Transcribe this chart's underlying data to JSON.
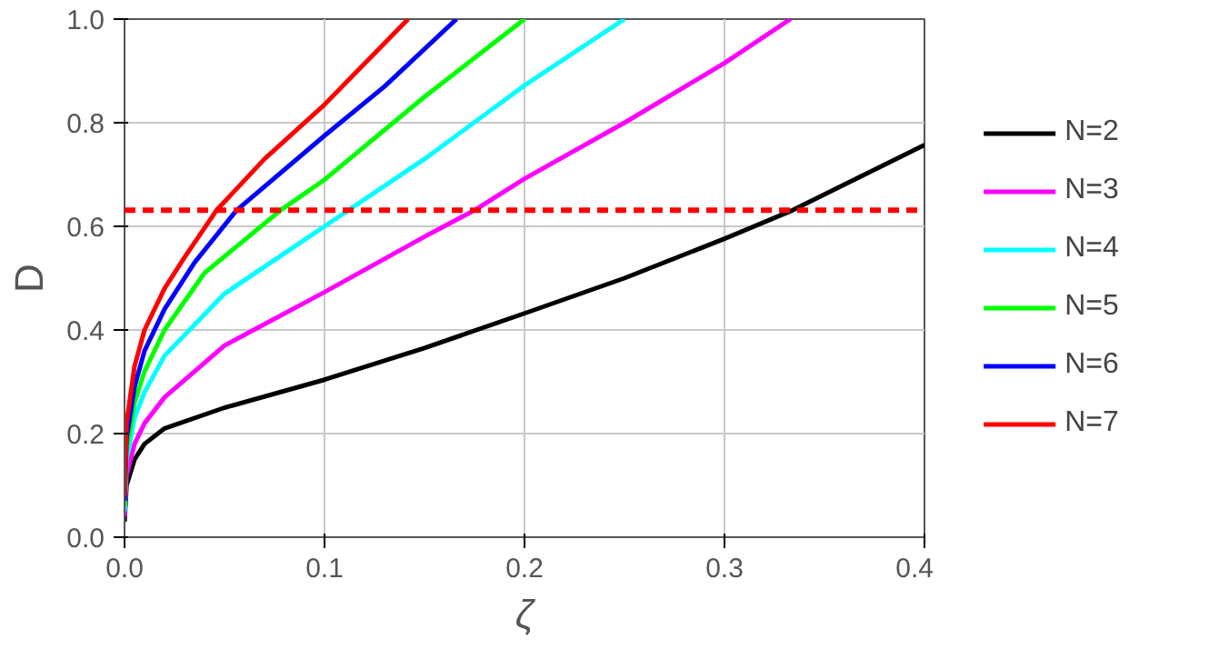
{
  "chart_data": {
    "type": "line",
    "xlabel": "ζ",
    "ylabel": "D",
    "xlim": [
      0,
      0.4
    ],
    "ylim": [
      0,
      1
    ],
    "xticks": [
      {
        "value": 0,
        "label": "0.0"
      },
      0.1,
      0.2,
      0.3,
      0.4
    ],
    "yticks": [
      {
        "value": 0,
        "label": "0.0"
      },
      0.2,
      0.4,
      0.6,
      0.8,
      {
        "value": 1,
        "label": "1.0"
      }
    ],
    "grid": true,
    "legend": "right",
    "line_style": "solid",
    "marker": "none",
    "ref_lines": [
      {
        "axis": "y",
        "value": 0.631,
        "label": null,
        "color": "#ff0000",
        "line_style": "dashed"
      }
    ],
    "series": [
      {
        "name": "N=2",
        "color": "#000000",
        "x": [
          0,
          0.001,
          0.005,
          0.01,
          0.02,
          0.05,
          0.1,
          0.15,
          0.2,
          0.25,
          0.3,
          0.334,
          0.4
        ],
        "values": [
          0.03,
          0.1,
          0.15,
          0.18,
          0.21,
          0.25,
          0.304,
          0.365,
          0.432,
          0.5,
          0.576,
          0.631,
          0.757
        ]
      },
      {
        "name": "N=3",
        "color": "#ff00ff",
        "x": [
          0,
          0.001,
          0.005,
          0.01,
          0.02,
          0.05,
          0.1,
          0.15,
          0.175,
          0.2,
          0.25,
          0.3,
          0.333
        ],
        "values": [
          0.04,
          0.12,
          0.18,
          0.22,
          0.27,
          0.37,
          0.473,
          0.58,
          0.631,
          0.692,
          0.8,
          0.915,
          1.0
        ]
      },
      {
        "name": "N=4",
        "color": "#00ffff",
        "x": [
          0,
          0.001,
          0.005,
          0.01,
          0.02,
          0.05,
          0.1,
          0.15,
          0.2,
          0.25
        ],
        "values": [
          0.05,
          0.15,
          0.23,
          0.28,
          0.35,
          0.47,
          0.6,
          0.73,
          0.872,
          1.0
        ]
      },
      {
        "name": "N=5",
        "color": "#00ff00",
        "x": [
          0,
          0.001,
          0.005,
          0.01,
          0.02,
          0.04,
          0.078,
          0.1,
          0.15,
          0.2
        ],
        "values": [
          0.06,
          0.17,
          0.26,
          0.32,
          0.4,
          0.51,
          0.631,
          0.69,
          0.85,
          1.0
        ]
      },
      {
        "name": "N=6",
        "color": "#0000ff",
        "x": [
          0,
          0.001,
          0.005,
          0.01,
          0.02,
          0.035,
          0.056,
          0.1,
          0.13,
          0.166
        ],
        "values": [
          0.07,
          0.19,
          0.29,
          0.36,
          0.44,
          0.53,
          0.631,
          0.775,
          0.87,
          1.0
        ]
      },
      {
        "name": "N=7",
        "color": "#ff0000",
        "x": [
          0,
          0.001,
          0.005,
          0.01,
          0.02,
          0.03,
          0.046,
          0.07,
          0.1,
          0.1418
        ],
        "values": [
          0.08,
          0.22,
          0.33,
          0.4,
          0.48,
          0.54,
          0.631,
          0.73,
          0.835,
          1.0
        ]
      }
    ]
  }
}
